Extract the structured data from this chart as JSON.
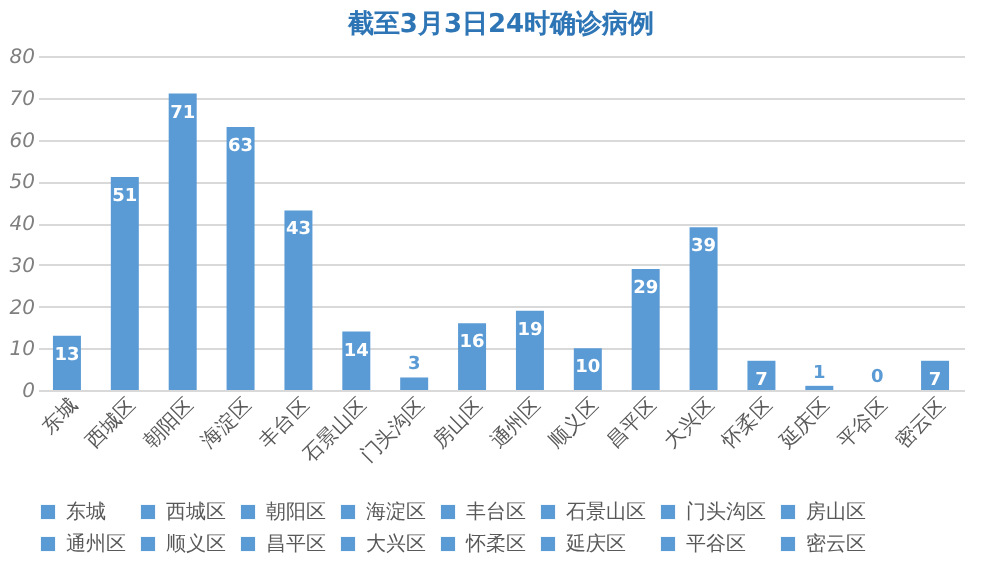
{
  "chart_data": {
    "type": "bar",
    "title": "截至3月3日24时确诊病例",
    "categories": [
      "东城",
      "西城区",
      "朝阳区",
      "海淀区",
      "丰台区",
      "石景山区",
      "门头沟区",
      "房山区",
      "通州区",
      "顺义区",
      "昌平区",
      "大兴区",
      "怀柔区",
      "延庆区",
      "平谷区",
      "密云区"
    ],
    "series": [
      {
        "name": "东城",
        "color": "#5b9bd5",
        "values": [
          13,
          null,
          null,
          null,
          null,
          null,
          null,
          null,
          null,
          null,
          null,
          null,
          null,
          null,
          null,
          null
        ]
      },
      {
        "name": "西城区",
        "color": "#5b9bd5",
        "values": [
          null,
          51,
          null,
          null,
          null,
          null,
          null,
          null,
          null,
          null,
          null,
          null,
          null,
          null,
          null,
          null
        ]
      },
      {
        "name": "朝阳区",
        "color": "#5b9bd5",
        "values": [
          null,
          null,
          71,
          null,
          null,
          null,
          null,
          null,
          null,
          null,
          null,
          null,
          null,
          null,
          null,
          null
        ]
      },
      {
        "name": "海淀区",
        "color": "#5b9bd5",
        "values": [
          null,
          null,
          null,
          63,
          null,
          null,
          null,
          null,
          null,
          null,
          null,
          null,
          null,
          null,
          null,
          null
        ]
      },
      {
        "name": "丰台区",
        "color": "#5b9bd5",
        "values": [
          null,
          null,
          null,
          null,
          43,
          null,
          null,
          null,
          null,
          null,
          null,
          null,
          null,
          null,
          null,
          null
        ]
      },
      {
        "name": "石景山区",
        "color": "#5b9bd5",
        "values": [
          null,
          null,
          null,
          null,
          null,
          14,
          null,
          null,
          null,
          null,
          null,
          null,
          null,
          null,
          null,
          null
        ]
      },
      {
        "name": "门头沟区",
        "color": "#5b9bd5",
        "values": [
          null,
          null,
          null,
          null,
          null,
          null,
          3,
          null,
          null,
          null,
          null,
          null,
          null,
          null,
          null,
          null
        ]
      },
      {
        "name": "房山区",
        "color": "#5b9bd5",
        "values": [
          null,
          null,
          null,
          null,
          null,
          null,
          null,
          16,
          null,
          null,
          null,
          null,
          null,
          null,
          null,
          null
        ]
      },
      {
        "name": "通州区",
        "color": "#5b9bd5",
        "values": [
          null,
          null,
          null,
          null,
          null,
          null,
          null,
          null,
          19,
          null,
          null,
          null,
          null,
          null,
          null,
          null
        ]
      },
      {
        "name": "顺义区",
        "color": "#5b9bd5",
        "values": [
          null,
          null,
          null,
          null,
          null,
          null,
          null,
          null,
          null,
          10,
          null,
          null,
          null,
          null,
          null,
          null
        ]
      },
      {
        "name": "昌平区",
        "color": "#5b9bd5",
        "values": [
          null,
          null,
          null,
          null,
          null,
          null,
          null,
          null,
          null,
          null,
          29,
          null,
          null,
          null,
          null,
          null
        ]
      },
      {
        "name": "大兴区",
        "color": "#5b9bd5",
        "values": [
          null,
          null,
          null,
          null,
          null,
          null,
          null,
          null,
          null,
          null,
          null,
          39,
          null,
          null,
          null,
          null
        ]
      },
      {
        "name": "怀柔区",
        "color": "#5b9bd5",
        "values": [
          null,
          null,
          null,
          null,
          null,
          null,
          null,
          null,
          null,
          null,
          null,
          null,
          7,
          null,
          null,
          null
        ]
      },
      {
        "name": "延庆区",
        "color": "#5b9bd5",
        "values": [
          null,
          null,
          null,
          null,
          null,
          null,
          null,
          null,
          null,
          null,
          null,
          null,
          null,
          1,
          null,
          null
        ]
      },
      {
        "name": "平谷区",
        "color": "#5b9bd5",
        "values": [
          null,
          null,
          null,
          null,
          null,
          null,
          null,
          null,
          null,
          null,
          null,
          null,
          null,
          null,
          0,
          null
        ]
      },
      {
        "name": "密云区",
        "color": "#5b9bd5",
        "values": [
          null,
          null,
          null,
          null,
          null,
          null,
          null,
          null,
          null,
          null,
          null,
          null,
          null,
          null,
          null,
          7
        ]
      }
    ],
    "ylim": [
      0,
      80
    ],
    "yticks": [
      0,
      10,
      20,
      30,
      40,
      50,
      60,
      70,
      80
    ],
    "grid": "y",
    "legend": "bottom",
    "data_labels": true
  }
}
